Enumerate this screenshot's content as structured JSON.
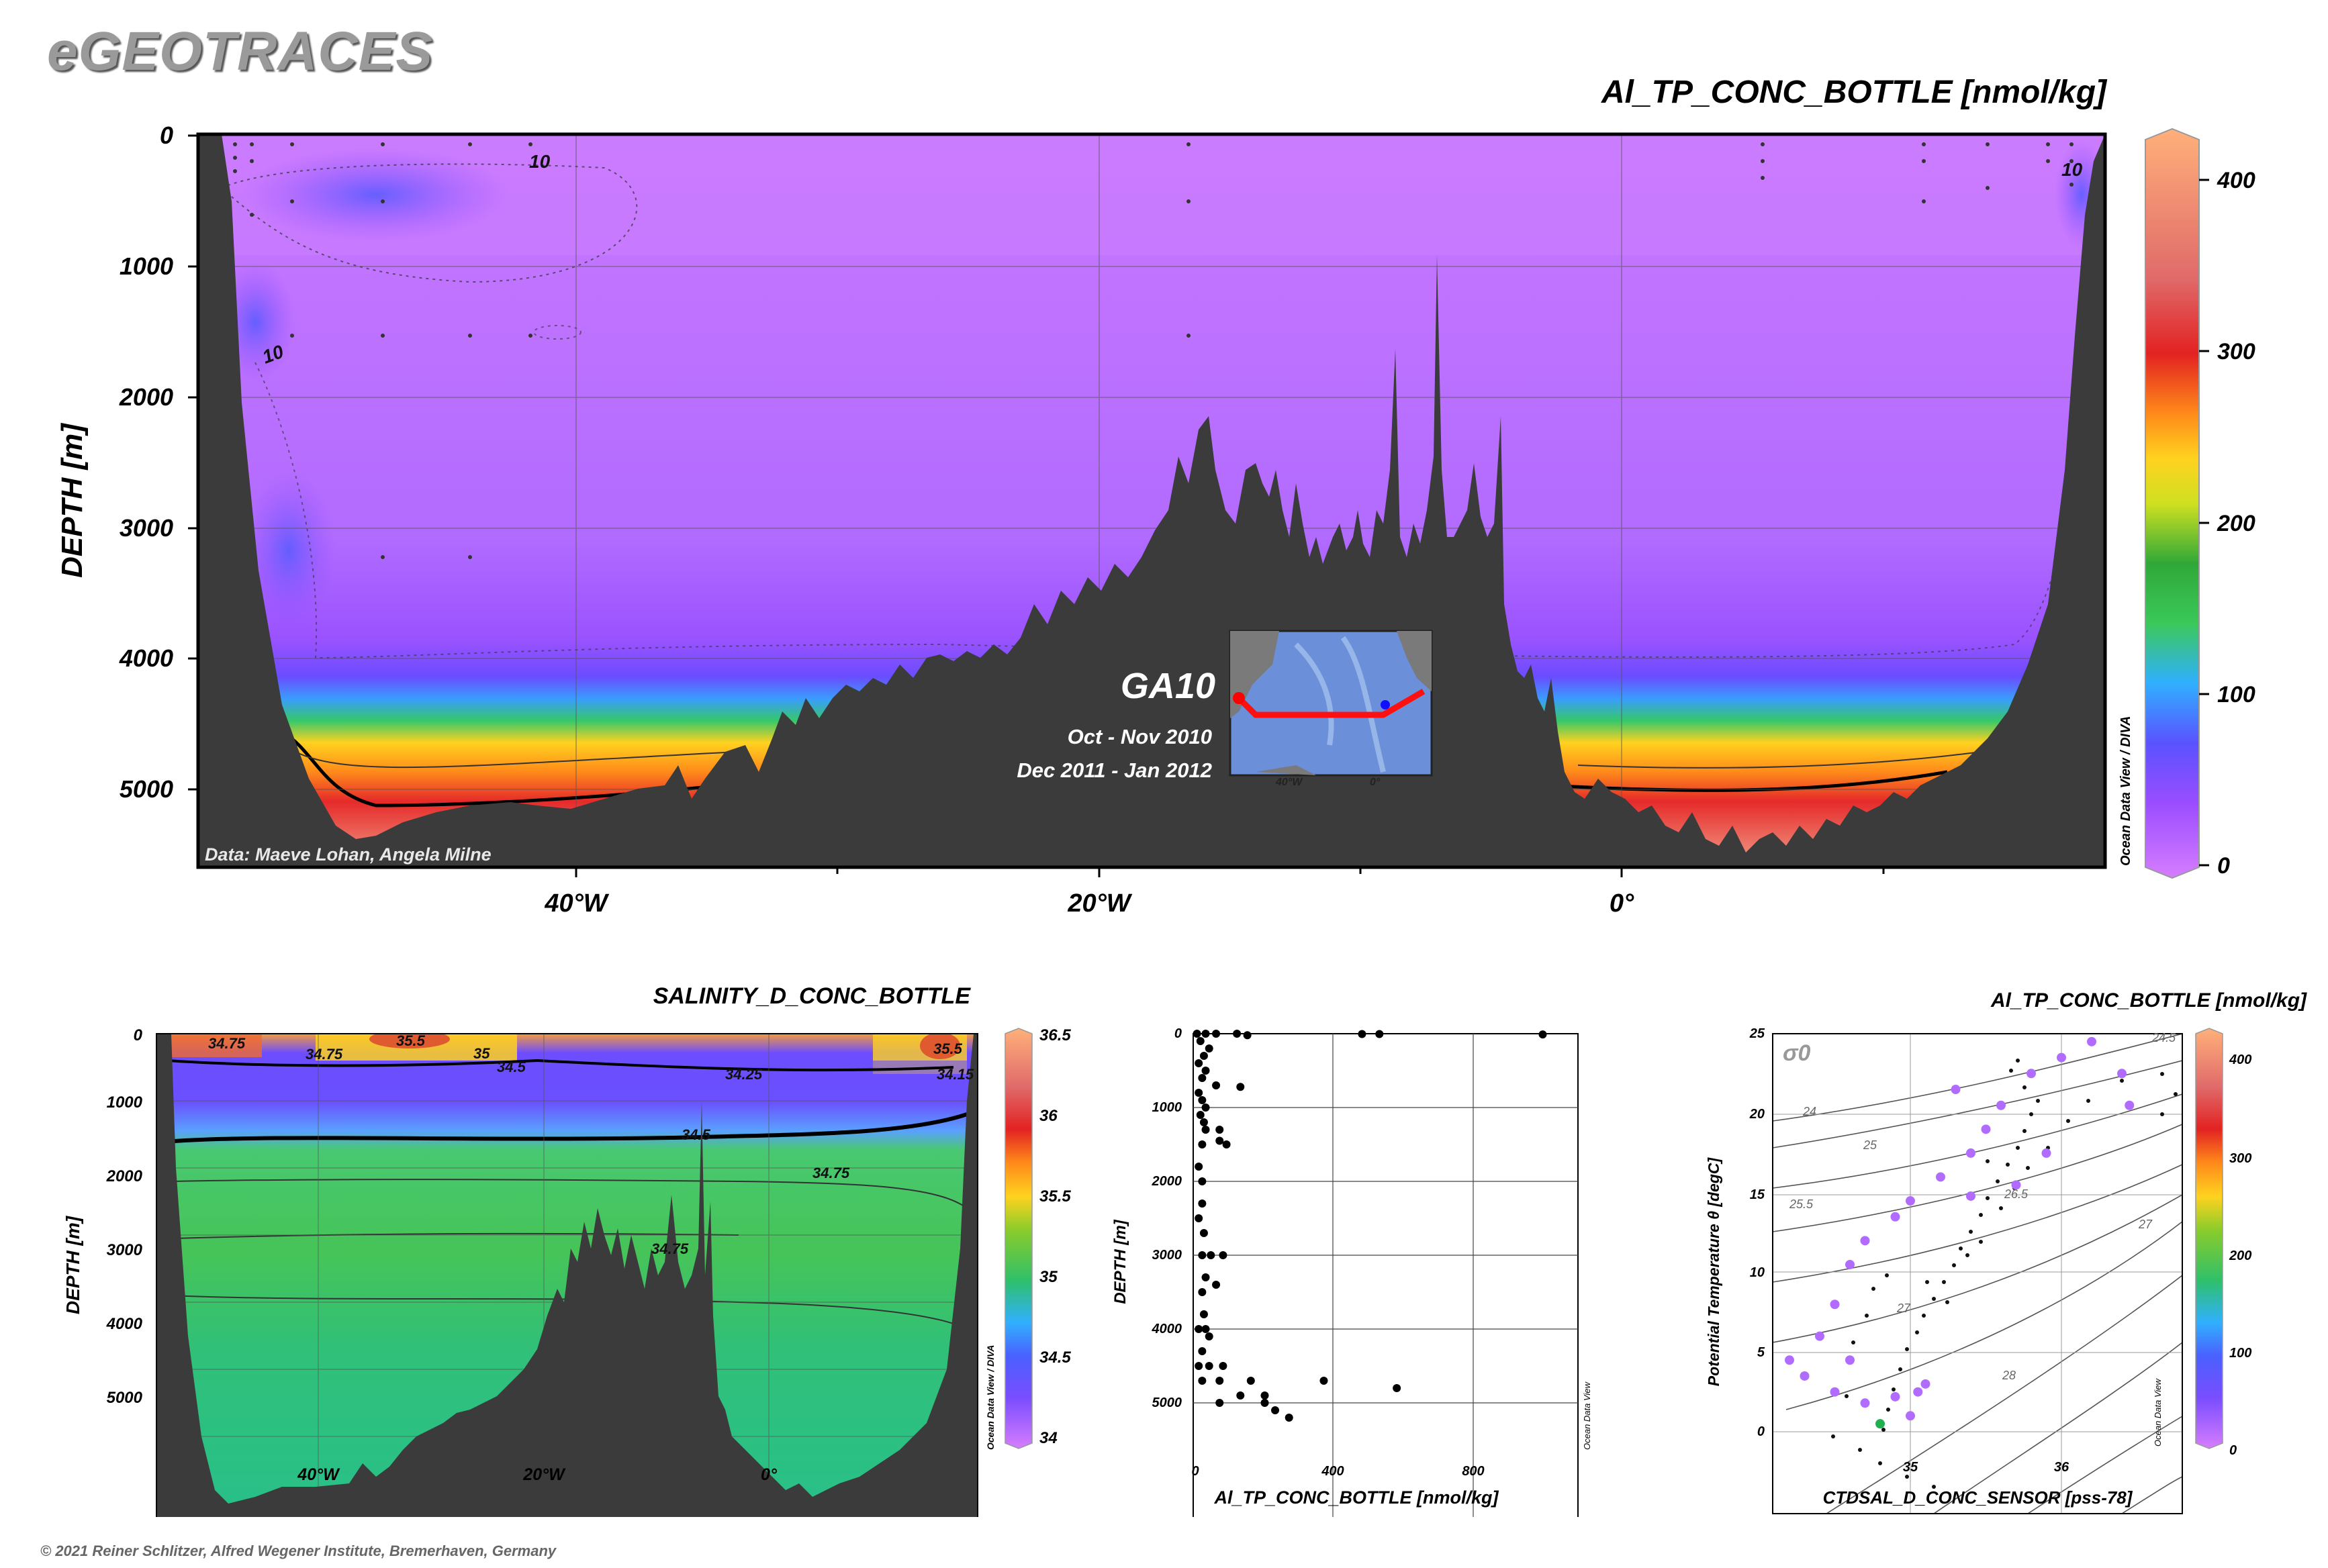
{
  "brand": "eGEOTRACES",
  "copyright": "© 2021 Reiner Schlitzer, Alfred Wegener Institute, Bremerhaven, Germany",
  "main_section": {
    "title": "Al_TP_CONC_BOTTLE [nmol/kg]",
    "ylabel": "DEPTH [m]",
    "y_ticks": [
      "0",
      "1000",
      "2000",
      "3000",
      "4000",
      "5000"
    ],
    "x_ticks": [
      "40°W",
      "20°W",
      "0°"
    ],
    "data_credit": "Data: Maeve Lohan, Angela Milne",
    "odv_credit": "Ocean Data View / DIVA",
    "contour_labels": [
      "10",
      "10",
      "10"
    ],
    "colorbar_ticks": [
      "400",
      "300",
      "200",
      "100",
      "0"
    ],
    "cruise": {
      "name": "GA10",
      "period1": "Oct - Nov 2010",
      "period2": "Dec 2011 - Jan 2012",
      "map_ticks": [
        "40°W",
        "0°"
      ]
    }
  },
  "salinity_section": {
    "title": "SALINITY_D_CONC_BOTTLE",
    "ylabel": "DEPTH [m]",
    "y_ticks": [
      "0",
      "1000",
      "2000",
      "3000",
      "4000",
      "5000"
    ],
    "x_ticks": [
      "40°W",
      "20°W",
      "0°"
    ],
    "odv_credit": "Ocean Data View / DIVA",
    "contour_labels": [
      "34.75",
      "35.5",
      "34.75",
      "35",
      "34.5",
      "34.25",
      "34.15",
      "35.5",
      "34.5",
      "34.75",
      "34.75"
    ],
    "colorbar_ticks": [
      "36.5",
      "36",
      "35.5",
      "35",
      "34.5",
      "34"
    ]
  },
  "profile_plot": {
    "xlabel": "Al_TP_CONC_BOTTLE [nmol/kg]",
    "ylabel": "DEPTH [m]",
    "x_ticks": [
      "0",
      "400",
      "800"
    ],
    "y_ticks": [
      "0",
      "1000",
      "2000",
      "3000",
      "4000",
      "5000"
    ],
    "odv_credit": "Ocean Data View"
  },
  "ts_plot": {
    "title": "Al_TP_CONC_BOTTLE [nmol/kg]",
    "xlabel": "CTDSAL_D_CONC_SENSOR [pss-78]",
    "ylabel": "Potential Temperature θ [degC]",
    "x_ticks": [
      "35",
      "36"
    ],
    "y_ticks": [
      "25",
      "20",
      "15",
      "10",
      "5",
      "0"
    ],
    "sigma_symbol": "σ0",
    "isopycnal_labels": [
      "24.5",
      "24",
      "25",
      "25.5",
      "26.5",
      "27",
      "27",
      "28"
    ],
    "colorbar_ticks": [
      "400",
      "300",
      "200",
      "100",
      "0"
    ],
    "odv_credit": "Ocean Data View"
  },
  "chart_data": [
    {
      "type": "heatmap",
      "title": "Al_TP_CONC_BOTTLE [nmol/kg]",
      "ylabel": "DEPTH [m]",
      "x_range": [
        "55°W",
        "18°E"
      ],
      "ylim": [
        5600,
        0
      ],
      "colorbar_range": [
        0,
        430
      ],
      "colormap": [
        "#d67dff",
        "#9a4dff",
        "#5a52ff",
        "#30b0ff",
        "#3bc85a",
        "#ffd21f",
        "#e32222",
        "#ffb07a"
      ],
      "description_values": {
        "background_concentration": 10,
        "bottom_layer_max": 200
      }
    },
    {
      "type": "heatmap",
      "title": "SALINITY_D_CONC_BOTTLE",
      "ylabel": "DEPTH [m]",
      "ylim": [
        5600,
        0
      ],
      "colorbar_range": [
        34,
        36.5
      ]
    },
    {
      "type": "scatter",
      "xlabel": "Al_TP_CONC_BOTTLE [nmol/kg]",
      "ylabel": "DEPTH [m]",
      "xlim": [
        0,
        1100
      ],
      "ylim": [
        5600,
        0
      ],
      "points": [
        [
          5,
          0
        ],
        [
          30,
          0
        ],
        [
          60,
          0
        ],
        [
          120,
          0
        ],
        [
          150,
          20
        ],
        [
          480,
          5
        ],
        [
          530,
          5
        ],
        [
          1000,
          10
        ],
        [
          15,
          100
        ],
        [
          40,
          200
        ],
        [
          25,
          300
        ],
        [
          10,
          400
        ],
        [
          30,
          500
        ],
        [
          20,
          600
        ],
        [
          60,
          700
        ],
        [
          130,
          720
        ],
        [
          10,
          800
        ],
        [
          20,
          900
        ],
        [
          30,
          1000
        ],
        [
          15,
          1100
        ],
        [
          25,
          1200
        ],
        [
          30,
          1300
        ],
        [
          70,
          1300
        ],
        [
          90,
          1500
        ],
        [
          20,
          1500
        ],
        [
          70,
          1450
        ],
        [
          10,
          1800
        ],
        [
          20,
          2000
        ],
        [
          20,
          2300
        ],
        [
          10,
          2500
        ],
        [
          25,
          2700
        ],
        [
          20,
          3000
        ],
        [
          45,
          3000
        ],
        [
          80,
          3000
        ],
        [
          30,
          3300
        ],
        [
          60,
          3400
        ],
        [
          20,
          3500
        ],
        [
          25,
          3800
        ],
        [
          10,
          4000
        ],
        [
          30,
          4000
        ],
        [
          40,
          4100
        ],
        [
          20,
          4300
        ],
        [
          10,
          4500
        ],
        [
          40,
          4500
        ],
        [
          80,
          4500
        ],
        [
          20,
          4700
        ],
        [
          70,
          4700
        ],
        [
          160,
          4700
        ],
        [
          370,
          4700
        ],
        [
          580,
          4800
        ],
        [
          130,
          4900
        ],
        [
          200,
          4900
        ],
        [
          200,
          5000
        ],
        [
          70,
          5000
        ],
        [
          230,
          5100
        ],
        [
          270,
          5200
        ]
      ]
    },
    {
      "type": "scatter",
      "xlabel": "CTDSAL_D_CONC_SENSOR [pss-78]",
      "ylabel": "Potential Temperature θ [degC]",
      "xlim": [
        34.0,
        36.5
      ],
      "ylim": [
        -0.5,
        25.5
      ],
      "colorbar_range": [
        0,
        430
      ],
      "points": [
        [
          34.2,
          4.5
        ],
        [
          34.3,
          3.5
        ],
        [
          34.5,
          2.5
        ],
        [
          34.7,
          1.8
        ],
        [
          34.9,
          2.2
        ],
        [
          34.6,
          4.5
        ],
        [
          34.4,
          6.0
        ],
        [
          34.5,
          8.0
        ],
        [
          34.6,
          10.5
        ],
        [
          34.7,
          12.0
        ],
        [
          34.9,
          13.5
        ],
        [
          35.0,
          14.5
        ],
        [
          35.2,
          16.0
        ],
        [
          35.4,
          17.5
        ],
        [
          35.5,
          19.0
        ],
        [
          35.6,
          20.5
        ],
        [
          35.8,
          22.5
        ],
        [
          36.0,
          23.5
        ],
        [
          36.2,
          24.5
        ],
        [
          36.4,
          22.5
        ],
        [
          36.45,
          20.5
        ],
        [
          35.9,
          17.5
        ],
        [
          35.3,
          21.5
        ],
        [
          35.7,
          15.5
        ],
        [
          35.4,
          14.8
        ],
        [
          35.0,
          1.0
        ],
        [
          34.8,
          0.5
        ],
        [
          35.1,
          3.0
        ],
        [
          35.05,
          2.5
        ]
      ]
    }
  ]
}
